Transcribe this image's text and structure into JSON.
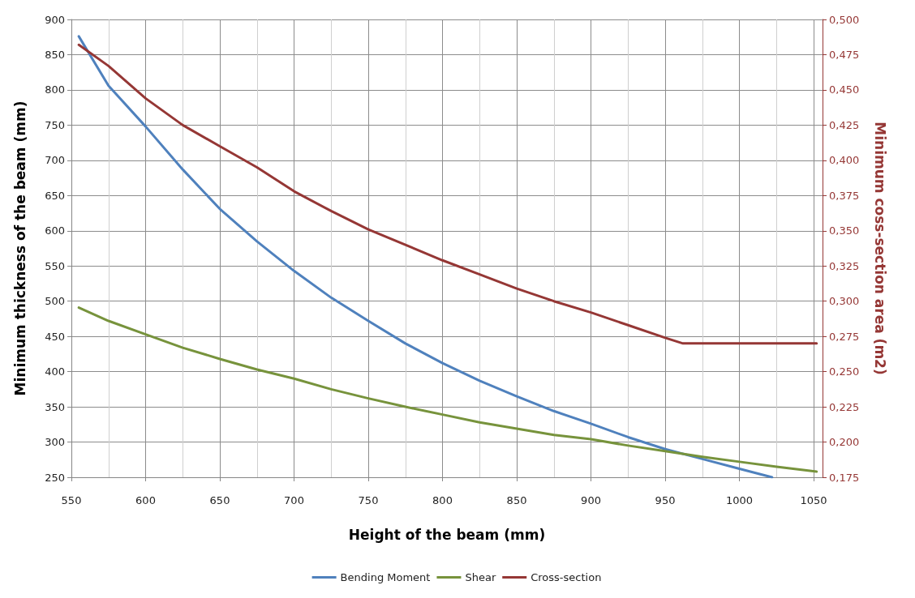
{
  "chart_data": {
    "type": "line",
    "xlabel": "Height of the beam (mm)",
    "ylabel": "Minimum thickness of the beam (mm)",
    "y2label": "Minimum coss-section area (m2)",
    "xlim": [
      550,
      1056
    ],
    "xticks": [
      550,
      600,
      650,
      700,
      750,
      800,
      850,
      900,
      950,
      1000,
      1050
    ],
    "ylim": [
      250,
      900
    ],
    "yticks": [
      250,
      300,
      350,
      400,
      450,
      500,
      550,
      600,
      650,
      700,
      750,
      800,
      850,
      900
    ],
    "y2lim": [
      0.175,
      0.5
    ],
    "y2ticks": [
      {
        "value": 0.175,
        "label": "0,175"
      },
      {
        "value": 0.2,
        "label": "0,200"
      },
      {
        "value": 0.225,
        "label": "0,225"
      },
      {
        "value": 0.25,
        "label": "0,250"
      },
      {
        "value": 0.275,
        "label": "0,275"
      },
      {
        "value": 0.3,
        "label": "0,300"
      },
      {
        "value": 0.325,
        "label": "0,325"
      },
      {
        "value": 0.35,
        "label": "0,350"
      },
      {
        "value": 0.375,
        "label": "0,375"
      },
      {
        "value": 0.4,
        "label": "0,400"
      },
      {
        "value": 0.425,
        "label": "0,425"
      },
      {
        "value": 0.45,
        "label": "0,450"
      },
      {
        "value": 0.475,
        "label": "0,475"
      },
      {
        "value": 0.5,
        "label": "0,500"
      }
    ],
    "grid": true,
    "legend": "bottom",
    "marker": "none",
    "line_style": "solid",
    "series": [
      {
        "name": "Bending Moment",
        "color": "#4f81bd",
        "x": [
          555,
          575,
          600,
          625,
          650,
          675,
          700,
          725,
          750,
          775,
          800,
          825,
          850,
          875,
          900,
          925,
          950,
          975,
          1000,
          1022
        ],
        "values": [
          876,
          806,
          748,
          687,
          631,
          585,
          543,
          505,
          472,
          440,
          412,
          387,
          365,
          344,
          326,
          307,
          290,
          276,
          262,
          250
        ]
      },
      {
        "name": "Shear",
        "color": "#77933c",
        "x": [
          555,
          575,
          600,
          625,
          650,
          675,
          700,
          725,
          750,
          775,
          800,
          825,
          850,
          875,
          900,
          925,
          950,
          975,
          1000,
          1025,
          1052
        ],
        "values": [
          491,
          472,
          453,
          434,
          418,
          403,
          390,
          375,
          362,
          350,
          339,
          328,
          319,
          310,
          304,
          295,
          287,
          279,
          272,
          265,
          258
        ]
      },
      {
        "name": "Cross-section",
        "color": "#953735",
        "axis": "y2",
        "x": [
          555,
          575,
          600,
          625,
          650,
          675,
          700,
          725,
          750,
          775,
          800,
          825,
          850,
          875,
          900,
          925,
          950,
          962,
          1052
        ],
        "values": [
          0.482,
          0.467,
          0.444,
          0.425,
          0.41,
          0.395,
          0.378,
          0.364,
          0.351,
          0.34,
          0.329,
          0.319,
          0.309,
          0.3,
          0.292,
          0.283,
          0.274,
          0.27,
          0.27
        ]
      }
    ]
  }
}
